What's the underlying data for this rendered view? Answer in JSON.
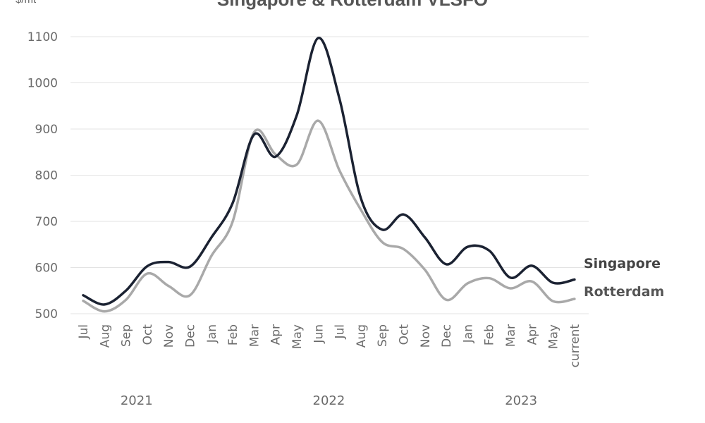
{
  "chart_data": {
    "type": "line",
    "title": "Singapore & Rotterdam VLSFO",
    "ylabel": "$/mt",
    "xlabel": "",
    "ylim": [
      500,
      1100
    ],
    "yticks": [
      500,
      600,
      700,
      800,
      900,
      1000,
      1100
    ],
    "grid": true,
    "categories": [
      "Jul",
      "Aug",
      "Sep",
      "Oct",
      "Nov",
      "Dec",
      "Jan",
      "Feb",
      "Mar",
      "Apr",
      "May",
      "Jun",
      "Jul",
      "Aug",
      "Sep",
      "Oct",
      "Nov",
      "Dec",
      "Jan",
      "Feb",
      "Mar",
      "Apr",
      "May",
      "current"
    ],
    "year_labels": [
      {
        "label": "2021",
        "center_index": 2.5
      },
      {
        "label": "2022",
        "center_index": 11.5
      },
      {
        "label": "2023",
        "center_index": 20.5
      }
    ],
    "series": [
      {
        "name": "Singapore",
        "color": "#1b2232",
        "values": [
          540,
          520,
          550,
          603,
          612,
          602,
          665,
          740,
          888,
          840,
          930,
          1097,
          965,
          750,
          682,
          715,
          665,
          607,
          645,
          637,
          578,
          604,
          567,
          574
        ]
      },
      {
        "name": "Rotterdam",
        "color": "#a9a9a9",
        "values": [
          528,
          505,
          530,
          587,
          560,
          540,
          625,
          700,
          893,
          845,
          823,
          918,
          810,
          725,
          655,
          640,
          595,
          530,
          566,
          577,
          555,
          570,
          527,
          532
        ]
      }
    ]
  }
}
